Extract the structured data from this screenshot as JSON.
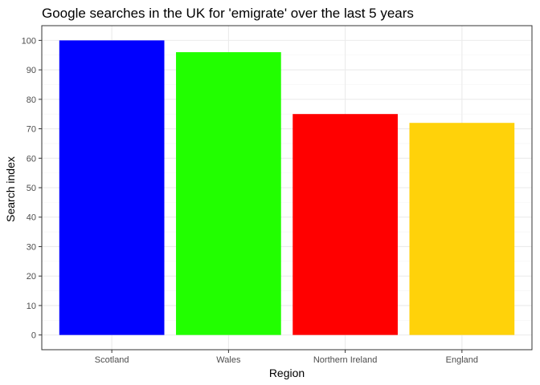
{
  "chart_data": {
    "type": "bar",
    "title": "Google searches in the UK for 'emigrate' over the last 5 years",
    "xlabel": "Region",
    "ylabel": "Search index",
    "categories": [
      "Scotland",
      "Wales",
      "Northern Ireland",
      "England"
    ],
    "values": [
      100,
      96,
      75,
      72
    ],
    "colors": [
      "#0000FF",
      "#22FF00",
      "#FF0000",
      "#FFD20A"
    ],
    "ylim": [
      0,
      100
    ],
    "yticks": [
      0,
      10,
      20,
      30,
      40,
      50,
      60,
      70,
      80,
      90,
      100
    ],
    "grid": true,
    "legend": "none",
    "theme": {
      "background": "#ffffff",
      "panel_border": "#333333",
      "grid_major": "#ebebeb",
      "grid_minor": "#f5f5f5",
      "tick_color": "#333333",
      "tick_label_color": "#4d4d4d"
    }
  }
}
